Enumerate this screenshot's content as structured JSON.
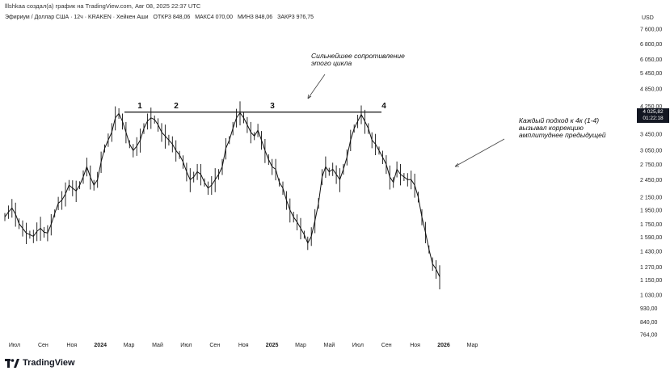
{
  "header": {
    "author_line": "lllshkaa создал(а) график на TradingView.com, Авг 08, 2025 22:37 UTC",
    "symbol": "Эфириум / Доллар США · 12ч · KRAKEN · Хейкен Аши",
    "open": "ОТКР3 848,06",
    "high": "МАКС4 070,00",
    "low": "МИН3 848,06",
    "close": "ЗАКР3 976,75"
  },
  "price_label": {
    "value": "4 025,82",
    "timer": "01:22:18"
  },
  "brand": {
    "name": "TradingView"
  },
  "annotations": {
    "resistance_line1": "Сильнейшее сопротивление",
    "resistance_line2": "этого цикла",
    "note_line1": "Каждый подход к 4к (1-4)",
    "note_line2": "вызывал коррекцию",
    "note_line3": "амплитуднее предыдущей",
    "touches": [
      "1",
      "2",
      "3",
      "4"
    ]
  },
  "colors": {
    "candles": "#111111",
    "text": "#131722",
    "background": "#ffffff"
  },
  "chart_data": {
    "type": "line",
    "currency": "USD",
    "y_scale": "log",
    "ylim": [
      700,
      8000
    ],
    "y_ticks": [
      "7 600,00",
      "6 800,00",
      "6 050,00",
      "5 450,00",
      "4 850,00",
      "4 250,00",
      "3 450,00",
      "3 050,00",
      "2 750,00",
      "2 450,00",
      "2 150,00",
      "1 950,00",
      "1 750,00",
      "1 590,00",
      "1 430,00",
      "1 270,00",
      "1 150,00",
      "1 030,00",
      "930,00",
      "840,00",
      "764,00"
    ],
    "y_tick_values": [
      7600,
      6800,
      6050,
      5450,
      4850,
      4250,
      3450,
      3050,
      2750,
      2450,
      2150,
      1950,
      1750,
      1590,
      1430,
      1270,
      1150,
      1030,
      930,
      840,
      764
    ],
    "x_ticks": [
      "Июл",
      "Сен",
      "Ноя",
      "2024",
      "Мар",
      "Май",
      "Июл",
      "Сен",
      "Ноя",
      "2025",
      "Мар",
      "Май",
      "Июл",
      "Сен",
      "Ноя",
      "2026",
      "Мар"
    ],
    "x_tick_dates": [
      "2023-07",
      "2023-09",
      "2023-11",
      "2024-01",
      "2024-03",
      "2024-05",
      "2024-07",
      "2024-09",
      "2024-11",
      "2025-01",
      "2025-03",
      "2025-05",
      "2025-07",
      "2025-09",
      "2025-11",
      "2026-01",
      "2026-03"
    ],
    "resistance_level": 4070,
    "series": [
      {
        "values": [
          1850,
          1920,
          1980,
          1890,
          1760,
          1700,
          1640,
          1620,
          1600,
          1660,
          1700,
          1650,
          1640,
          1750,
          1900,
          2050,
          2100,
          2200,
          2350,
          2300,
          2250,
          2350,
          2500,
          2700,
          2500,
          2350,
          2450,
          2800,
          3100,
          3300,
          3500,
          3900,
          4030,
          3800,
          3500,
          3200,
          3050,
          3150,
          3300,
          3600,
          3800,
          3900,
          3850,
          3700,
          3500,
          3400,
          3300,
          3200,
          3050,
          2950,
          2800,
          2600,
          2450,
          2500,
          2600,
          2550,
          2400,
          2300,
          2350,
          2450,
          2550,
          2700,
          3100,
          3300,
          3600,
          3900,
          4050,
          3900,
          3700,
          3500,
          3400,
          3550,
          3300,
          3050,
          2850,
          2700,
          2650,
          2400,
          2300,
          2100,
          1950,
          1850,
          1780,
          1700,
          1620,
          1520,
          1600,
          1800,
          2050,
          2500,
          2700,
          2600,
          2650,
          2550,
          2450,
          2650,
          2900,
          3300,
          3600,
          3800,
          4000,
          3800,
          3600,
          3300,
          3200,
          3050,
          2900,
          2750,
          2500,
          2400,
          2650,
          2550,
          2500,
          2450,
          2450,
          2350,
          2150,
          1850,
          1650,
          1450,
          1300,
          1250,
          1180
        ]
      }
    ]
  }
}
